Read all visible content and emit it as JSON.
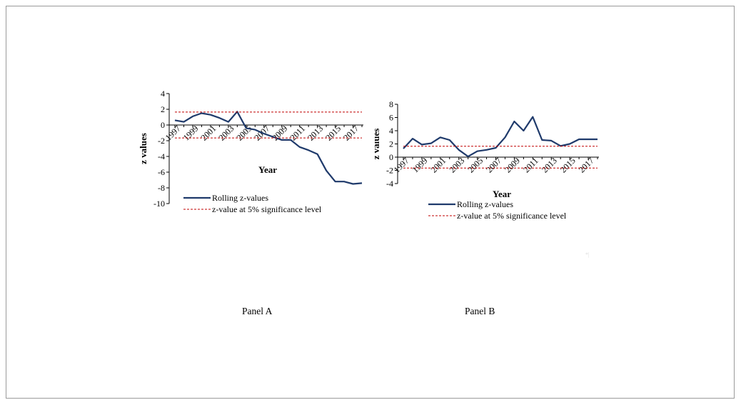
{
  "chart_data": [
    {
      "type": "line",
      "title": "",
      "xlabel": "Year",
      "ylabel": "z values",
      "x_tick_labels": [
        "1997",
        "1999",
        "2001",
        "2003",
        "2005",
        "2007",
        "2009",
        "2011",
        "2013",
        "2015",
        "2017"
      ],
      "y_ticks": [
        4,
        2,
        0,
        -2,
        -4,
        -6,
        -8,
        -10
      ],
      "ylim": [
        -10,
        4
      ],
      "series": [
        {
          "name": "Rolling z-values",
          "color": "#1f3a6b",
          "style": "solid",
          "x": [
            1997,
            1998,
            1999,
            2000,
            2001,
            2002,
            2003,
            2004,
            2005,
            2006,
            2007,
            2008,
            2009,
            2010,
            2011,
            2012,
            2013,
            2014,
            2015,
            2016,
            2017,
            2018
          ],
          "values": [
            0.6,
            0.4,
            1.1,
            1.5,
            1.3,
            0.9,
            0.4,
            1.7,
            -0.4,
            -0.6,
            -1.1,
            -1.5,
            -1.9,
            -1.9,
            -2.8,
            -3.2,
            -3.7,
            -5.8,
            -7.2,
            -7.2,
            -7.5,
            -7.4
          ]
        },
        {
          "name": "z-value at 5% significance level",
          "color": "#c00000",
          "style": "dashed",
          "x": [
            1997,
            2018
          ],
          "values": [
            1.645,
            1.645
          ]
        },
        {
          "name": "",
          "color": "#c00000",
          "style": "dashed",
          "x": [
            1997,
            2018
          ],
          "values": [
            -1.645,
            -1.645
          ]
        }
      ],
      "legend": [
        "Rolling z-values",
        "z-value at 5% significance level"
      ],
      "legend_position": "bottom",
      "grid": false
    },
    {
      "type": "line",
      "title": "",
      "xlabel": "Year",
      "ylabel": "z values",
      "x_tick_labels": [
        "1997",
        "1999",
        "2001",
        "2003",
        "2005",
        "2007",
        "2009",
        "2011",
        "2013",
        "2015",
        "2017"
      ],
      "y_ticks": [
        8,
        6,
        4,
        2,
        0,
        -2,
        -4
      ],
      "ylim": [
        -4,
        8
      ],
      "series": [
        {
          "name": "Rolling z-values",
          "color": "#1f3a6b",
          "style": "solid",
          "x": [
            1997,
            1998,
            1999,
            2000,
            2001,
            2002,
            2003,
            2004,
            2005,
            2006,
            2007,
            2008,
            2009,
            2010,
            2011,
            2012,
            2013,
            2014,
            2015,
            2016,
            2017,
            2018
          ],
          "values": [
            1.3,
            2.8,
            1.9,
            2.1,
            3.0,
            2.6,
            1.1,
            0.1,
            0.9,
            1.1,
            1.4,
            3.0,
            5.4,
            4.0,
            6.1,
            2.6,
            2.5,
            1.7,
            2.0,
            2.7,
            2.7,
            2.7
          ]
        },
        {
          "name": "z-value at 5% significance level",
          "color": "#c00000",
          "style": "dashed",
          "x": [
            1997,
            2018
          ],
          "values": [
            1.645,
            1.645
          ]
        },
        {
          "name": "",
          "color": "#c00000",
          "style": "dashed",
          "x": [
            1997,
            2018
          ],
          "values": [
            -1.645,
            -1.645
          ]
        }
      ],
      "legend": [
        "Rolling z-values",
        "z-value at 5% significance level"
      ],
      "legend_position": "bottom",
      "grid": false
    }
  ],
  "captions": {
    "panel_a": "Panel A",
    "panel_b": "Panel B"
  },
  "watermark": "*|"
}
